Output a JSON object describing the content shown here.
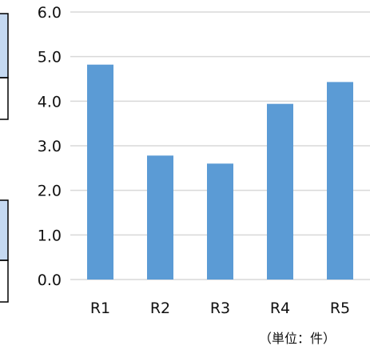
{
  "chart_data": {
    "type": "bar",
    "categories": [
      "R1",
      "R2",
      "R3",
      "R4",
      "R5"
    ],
    "values": [
      4.82,
      2.78,
      2.6,
      3.94,
      4.43
    ],
    "ylim": [
      0,
      6
    ],
    "yticks": [
      "0.0",
      "1.0",
      "2.0",
      "3.0",
      "4.0",
      "5.0",
      "6.0"
    ],
    "unit_label": "（単位：件）",
    "bar_color": "#5b9bd5",
    "grid": true,
    "grid_color": "#d9d9d9"
  }
}
